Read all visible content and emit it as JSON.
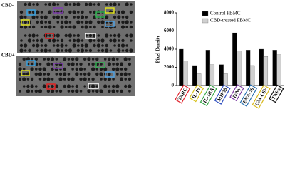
{
  "blots": [
    {
      "label": "CBD-"
    },
    {
      "label": "CBD+"
    }
  ],
  "chart_data": {
    "type": "bar",
    "y_label": "Pixel Density",
    "categories": [
      "TARC",
      "IL-10",
      "IL-1RA",
      "MIP3β",
      "IFNγ",
      "ENA-78",
      "GM-CSF",
      "TNFα"
    ],
    "category_colors": [
      "#e0202a",
      "#d8c21a",
      "#3aa84a",
      "#3050c0",
      "#7a3aa0",
      "#2a70b0",
      "#d8b818",
      "#111111"
    ],
    "series": [
      {
        "name": "Control PBMC",
        "color": "#000000",
        "values": [
          4000,
          2200,
          3900,
          2300,
          5800,
          3900,
          4000,
          3900
        ]
      },
      {
        "name": "CBD-treated PBMC",
        "color": "#d0d0d0",
        "values": [
          2700,
          1300,
          2300,
          1300,
          3800,
          2200,
          3200,
          3400
        ]
      }
    ],
    "ylim": [
      0,
      8000
    ],
    "yticks": [
      0,
      2000,
      4000,
      6000,
      8000
    ]
  }
}
